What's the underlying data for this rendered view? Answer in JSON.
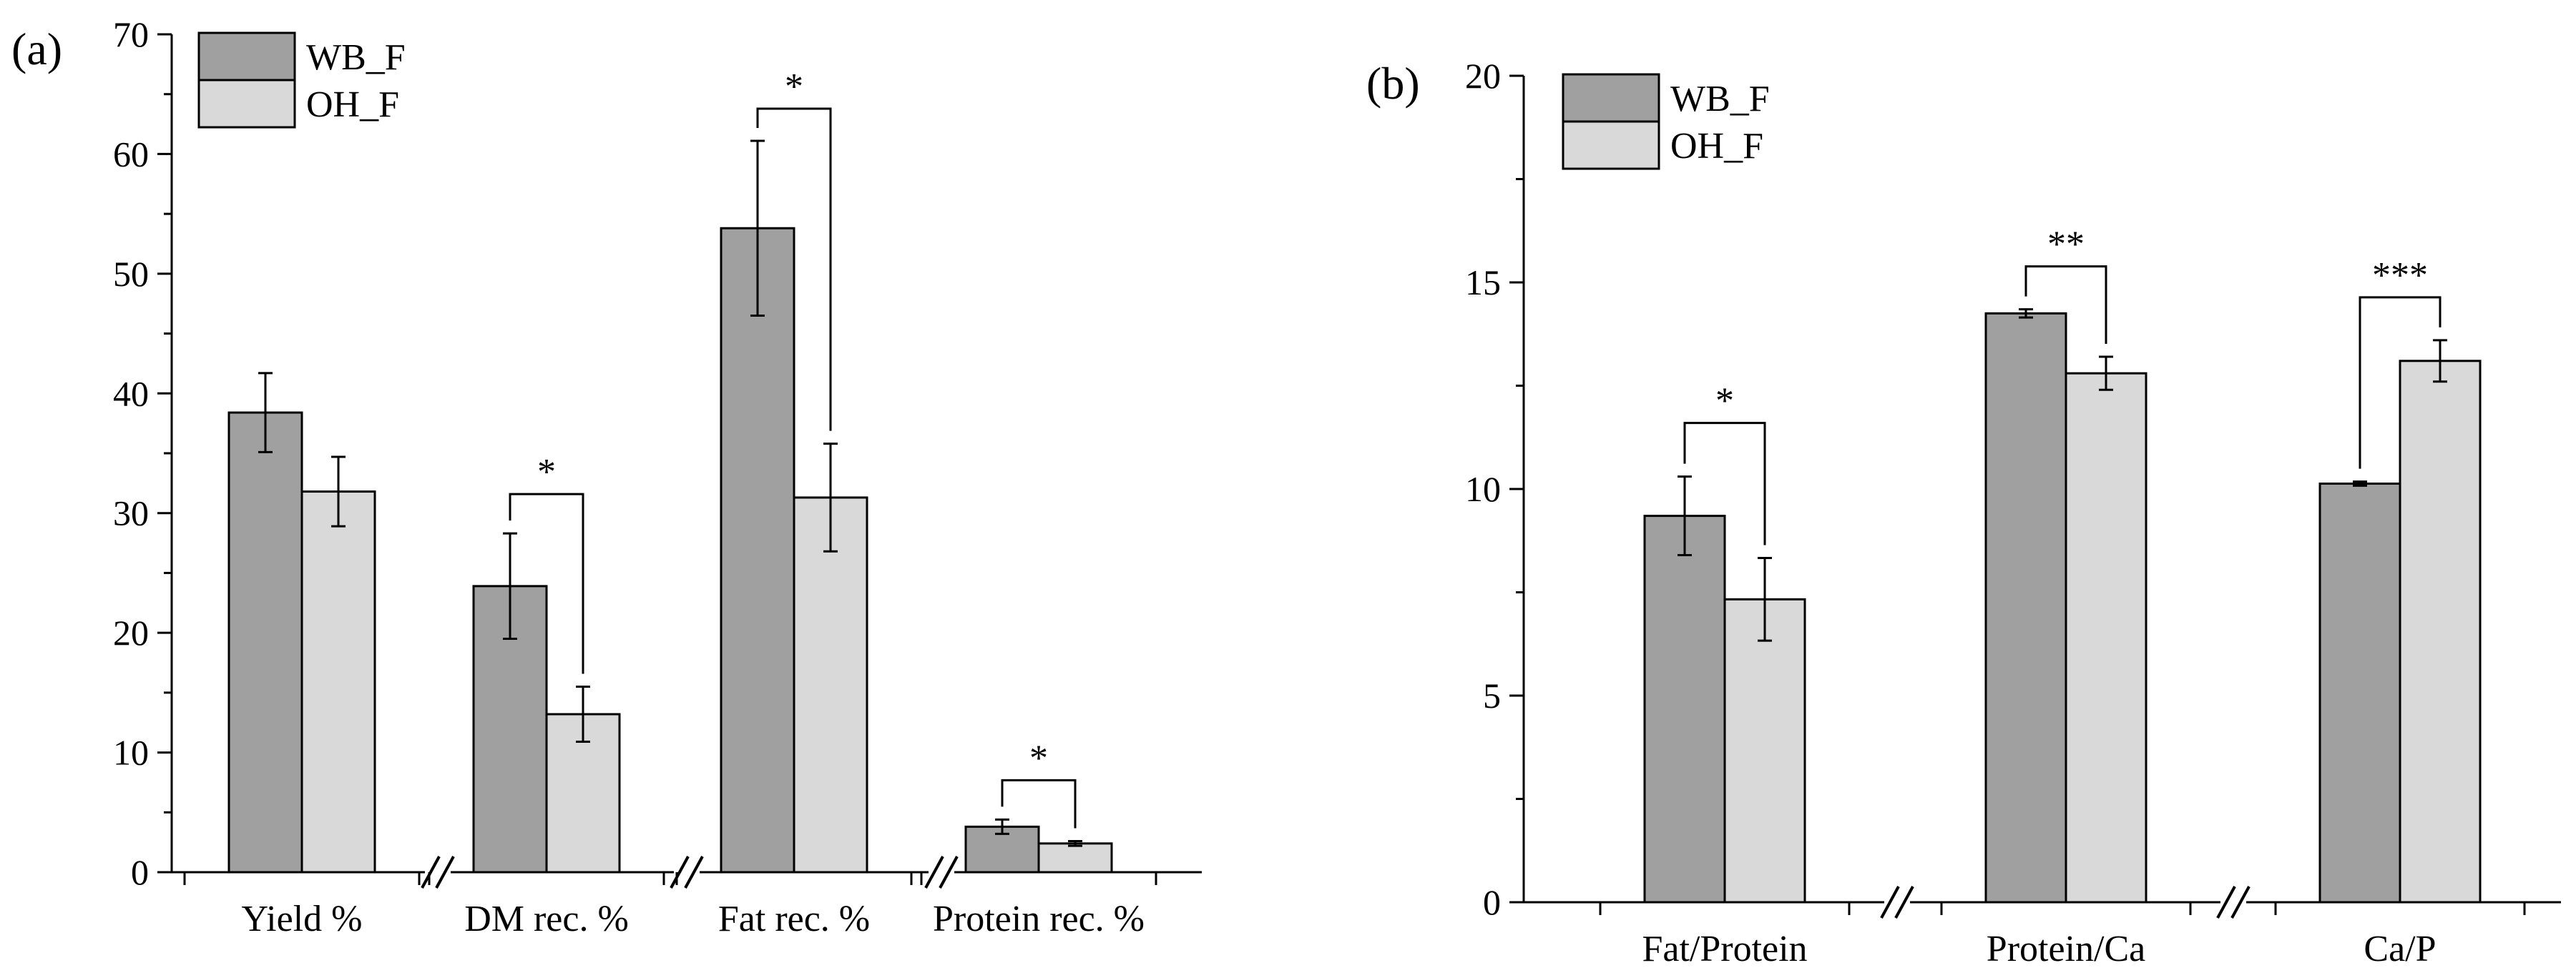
{
  "chart_data": [
    {
      "type": "bar",
      "panel_label": "(a)",
      "categories": [
        "Yield %",
        "DM rec. %",
        "Fat rec. %",
        "Protein rec. %"
      ],
      "series": [
        {
          "name": "WB_F",
          "color": "#a0a0a0",
          "values": [
            38.4,
            23.9,
            53.8,
            3.8
          ],
          "errors": [
            3.3,
            4.4,
            7.3,
            0.6
          ]
        },
        {
          "name": "OH_F",
          "color": "#d9d9d9",
          "values": [
            31.8,
            13.2,
            31.3,
            2.4
          ],
          "errors": [
            2.9,
            2.3,
            4.5,
            0.2
          ]
        }
      ],
      "significance": [
        "",
        "*",
        "*",
        "*"
      ],
      "ylim": [
        0,
        70
      ],
      "yticks": [
        0,
        10,
        20,
        30,
        40,
        50,
        60,
        70
      ],
      "xlabel": "",
      "ylabel": "",
      "axis_break_marker": "//",
      "legend_position": "top-left"
    },
    {
      "type": "bar",
      "panel_label": "(b)",
      "categories": [
        "Fat/Protein",
        "Protein/Ca",
        "Ca/P"
      ],
      "series": [
        {
          "name": "WB_F",
          "color": "#a0a0a0",
          "values": [
            9.35,
            14.25,
            10.13
          ],
          "errors": [
            0.95,
            0.1,
            0.05
          ]
        },
        {
          "name": "OH_F",
          "color": "#d9d9d9",
          "values": [
            7.33,
            12.8,
            13.1
          ],
          "errors": [
            1.0,
            0.4,
            0.5
          ]
        }
      ],
      "significance": [
        "*",
        "**",
        "***"
      ],
      "ylim": [
        0,
        20
      ],
      "yticks": [
        0,
        5,
        10,
        15,
        20
      ],
      "xlabel": "",
      "ylabel": "",
      "axis_break_marker": "//",
      "legend_position": "top-left"
    }
  ]
}
